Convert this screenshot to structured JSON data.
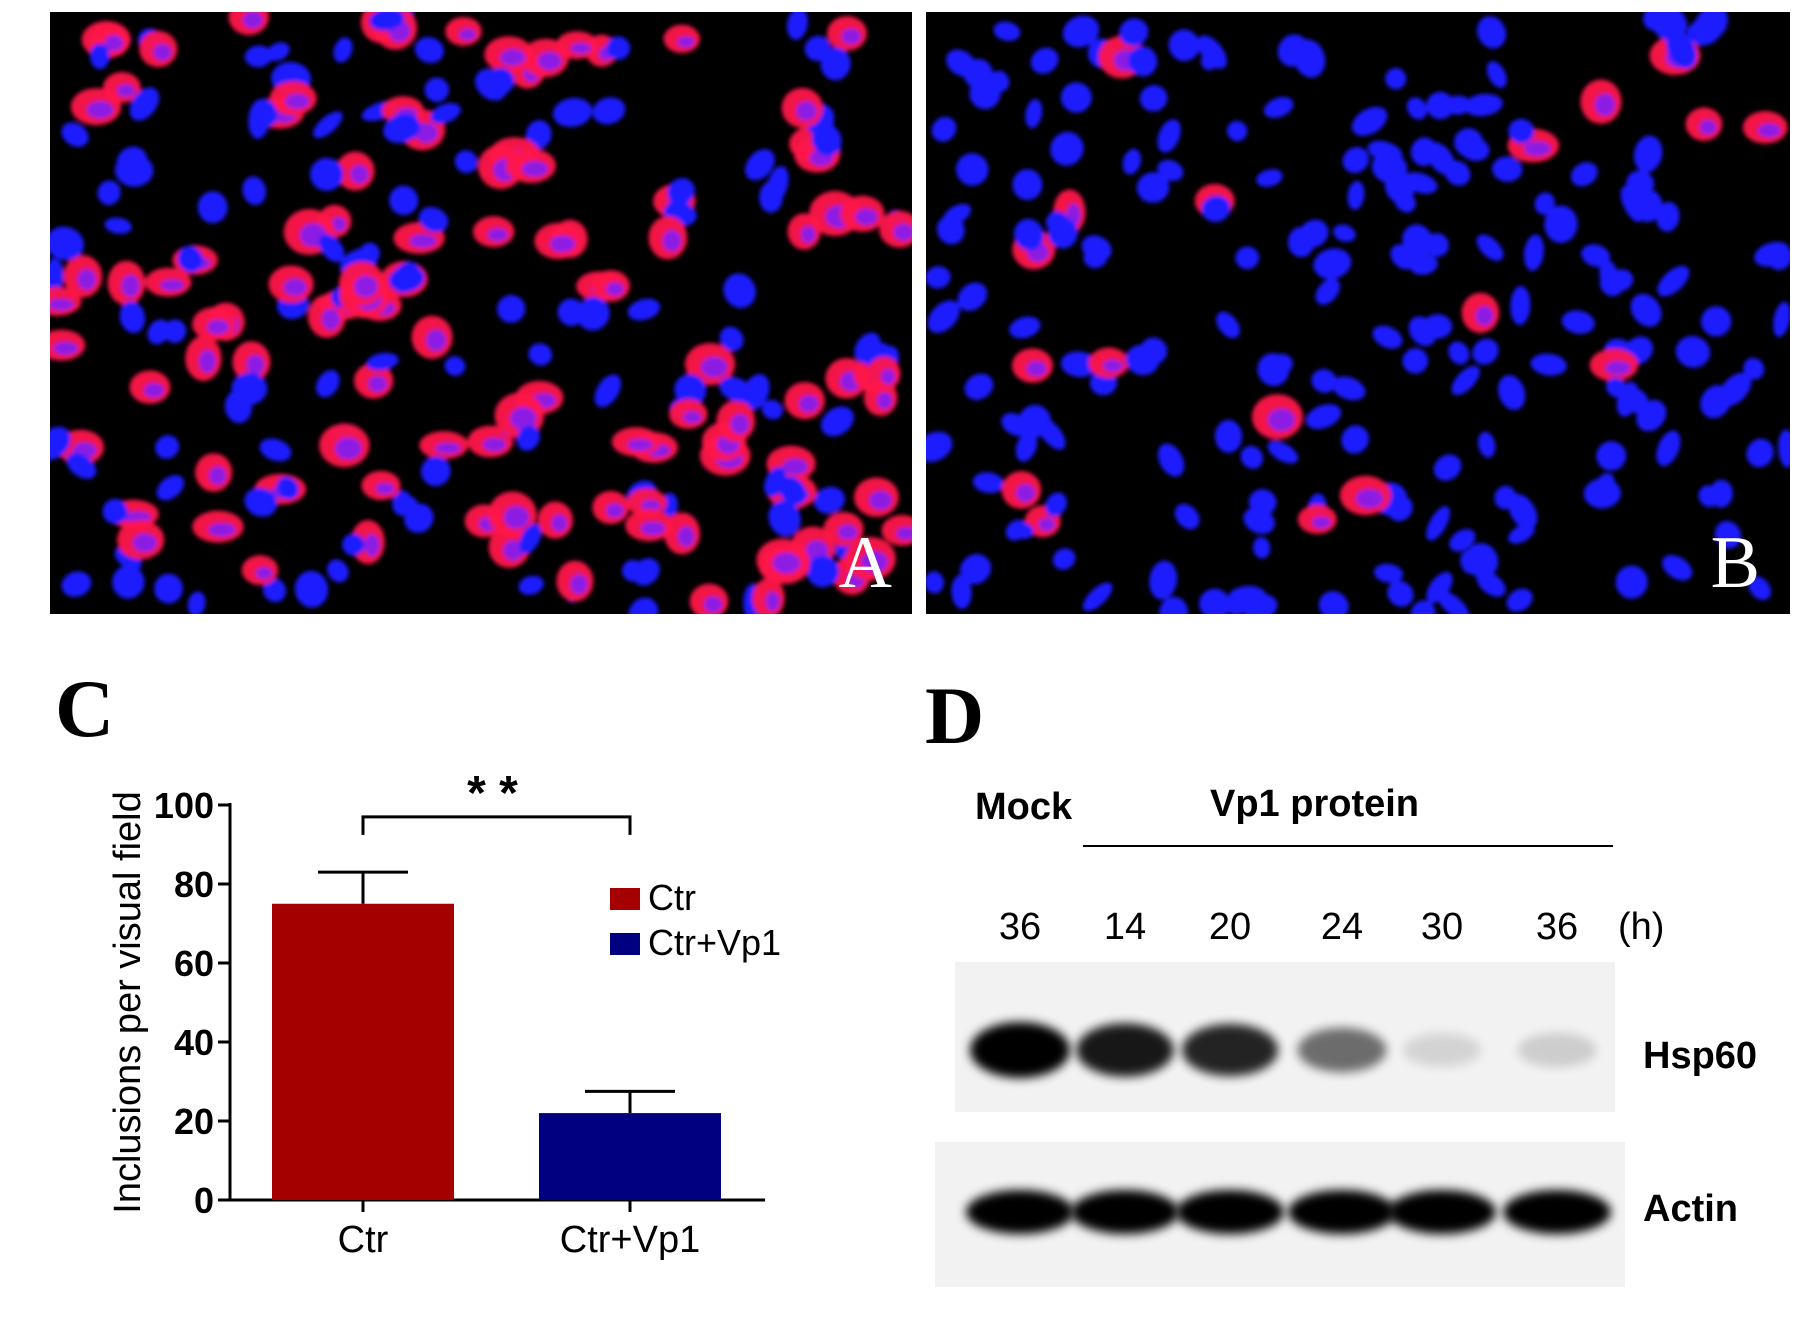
{
  "panels": {
    "A": {
      "letter": "A"
    },
    "B": {
      "letter": "B"
    },
    "C": {
      "letter": "C"
    },
    "D": {
      "letter": "D"
    }
  },
  "chart_data": {
    "type": "bar",
    "categories": [
      "Ctr",
      "Ctr+Vp1"
    ],
    "series": [
      {
        "name": "Ctr",
        "values": [
          75,
          null
        ],
        "errors": [
          8,
          null
        ],
        "color": "#a50000"
      },
      {
        "name": "Ctr+Vp1",
        "values": [
          null,
          22
        ],
        "errors": [
          null,
          5.5
        ],
        "color": "#000080"
      }
    ],
    "values": [
      75,
      22
    ],
    "errors": [
      8,
      5.5
    ],
    "colors": [
      "#a50000",
      "#000080"
    ],
    "ylabel": "Inclusions per visual field",
    "ylim": [
      0,
      100
    ],
    "yticks": [
      "0",
      "20",
      "40",
      "60",
      "80",
      "100"
    ],
    "legend": [
      {
        "label": "Ctr",
        "color": "#a50000"
      },
      {
        "label": "Ctr+Vp1",
        "color": "#000080"
      }
    ],
    "legend_position": "right",
    "significance": "* *",
    "grid": false
  },
  "blot": {
    "mock_label": "Mock",
    "treatment_label": "Vp1 protein",
    "times": [
      "36",
      "14",
      "20",
      "24",
      "30",
      "36"
    ],
    "time_unit": "(h)",
    "rows": [
      {
        "label": "Hsp60",
        "intensities": [
          1.0,
          0.9,
          0.85,
          0.55,
          0.12,
          0.15
        ]
      },
      {
        "label": "Actin",
        "intensities": [
          1.0,
          1.0,
          1.0,
          1.0,
          1.0,
          1.0
        ]
      }
    ]
  },
  "colors": {
    "nuclei": "#1a1aff",
    "inclusions": "#ff1040",
    "bar_ctr": "#a50000",
    "bar_vp1": "#000080"
  }
}
